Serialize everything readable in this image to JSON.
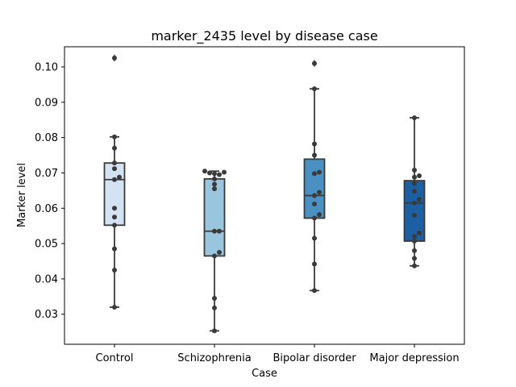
{
  "chart_data": {
    "type": "box",
    "title": "marker_2435 level by disease case",
    "xlabel": "Case",
    "ylabel": "Marker level",
    "ylim": [
      0.0215,
      0.1057
    ],
    "yticks": [
      0.03,
      0.04,
      0.05,
      0.06,
      0.07,
      0.08,
      0.09,
      0.1
    ],
    "ytick_labels": [
      "0.03",
      "0.04",
      "0.05",
      "0.06",
      "0.07",
      "0.08",
      "0.09",
      "0.10"
    ],
    "grid": false,
    "categories": [
      "Control",
      "Schizophrenia",
      "Bipolar disorder",
      "Major depression"
    ],
    "boxes": [
      {
        "category": "Control",
        "color": "#d3e3f3",
        "q1": 0.0552,
        "median": 0.0681,
        "q3": 0.0728,
        "whisker_low": 0.032,
        "whisker_high": 0.0802,
        "outliers": [
          0.1025
        ],
        "points": [
          0.1025,
          0.0802,
          0.077,
          0.0728,
          0.0712,
          0.0688,
          0.0681,
          0.06,
          0.0575,
          0.0552,
          0.0485,
          0.0425,
          0.032
        ]
      },
      {
        "category": "Schizophrenia",
        "color": "#9ac5de",
        "q1": 0.0465,
        "median": 0.0535,
        "q3": 0.0683,
        "whisker_low": 0.0253,
        "whisker_high": 0.0705,
        "outliers": [],
        "points": [
          0.0705,
          0.0702,
          0.07,
          0.0698,
          0.0695,
          0.0683,
          0.0668,
          0.0655,
          0.0535,
          0.0535,
          0.0475,
          0.0465,
          0.0345,
          0.0318,
          0.0253
        ]
      },
      {
        "category": "Bipolar disorder",
        "color": "#4a90c2",
        "q1": 0.0572,
        "median": 0.0636,
        "q3": 0.0739,
        "whisker_low": 0.0367,
        "whisker_high": 0.0938,
        "outliers": [
          0.101
        ],
        "points": [
          0.101,
          0.0938,
          0.0782,
          0.075,
          0.0702,
          0.0698,
          0.0645,
          0.0636,
          0.0612,
          0.0582,
          0.0572,
          0.0515,
          0.0442,
          0.0367
        ]
      },
      {
        "category": "Major depression",
        "color": "#1c5fa3",
        "q1": 0.0507,
        "median": 0.0615,
        "q3": 0.0678,
        "whisker_low": 0.0437,
        "whisker_high": 0.0856,
        "outliers": [],
        "points": [
          0.0856,
          0.0708,
          0.0692,
          0.0688,
          0.067,
          0.0648,
          0.0625,
          0.0615,
          0.058,
          0.053,
          0.052,
          0.0507,
          0.048,
          0.0458,
          0.0437
        ]
      }
    ]
  }
}
